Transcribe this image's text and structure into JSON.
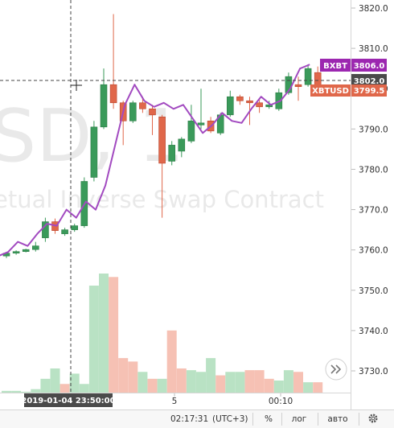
{
  "watermark": {
    "symbol": "SD, 1",
    "description": "etual Inverse Swap Contract"
  },
  "crosshair": {
    "time_label": "2019-01-04 23:50:00",
    "price_label": "3802.0",
    "price": 3802.0
  },
  "price_labels": [
    {
      "name": "BXBT",
      "value": "3806.0",
      "price": 3806.0,
      "color": "#9c27b0"
    },
    {
      "name": "XBTUSD",
      "value": "3799.5",
      "price": 3799.5,
      "color": "#e0674a"
    }
  ],
  "bottom_bar": {
    "clock": "02:17:31",
    "timezone": "(UTC+3)",
    "percent_btn": "%",
    "log_btn": "лог",
    "auto_btn": "авто",
    "gear_icon": "gear-icon"
  },
  "scroll_button_icon": "double-chevron-right-icon",
  "chart_data": {
    "type": "candlestick",
    "price_axis": {
      "ticks": [
        "3820.0",
        "3810.0",
        "3800.0",
        "3790.0",
        "3780.0",
        "3770.0",
        "3760.0",
        "3750.0",
        "3740.0",
        "3730.0"
      ],
      "range": [
        3725.0,
        3821.0
      ]
    },
    "time_axis": {
      "ticks": [
        "5",
        "00:10"
      ]
    },
    "colors": {
      "up": "#3a9a5a",
      "down": "#e0674a",
      "line": "#a24ac0"
    },
    "candles": [
      {
        "o": 3758.5,
        "h": 3759.5,
        "l": 3758.0,
        "c": 3759.2
      },
      {
        "o": 3759.2,
        "h": 3759.9,
        "l": 3758.8,
        "c": 3759.6
      },
      {
        "o": 3759.6,
        "h": 3760.3,
        "l": 3759.4,
        "c": 3760.1
      },
      {
        "o": 3760.1,
        "h": 3762.0,
        "l": 3759.6,
        "c": 3761.0
      },
      {
        "o": 3763.0,
        "h": 3768.0,
        "l": 3762.0,
        "c": 3767.0
      },
      {
        "o": 3767.0,
        "h": 3767.8,
        "l": 3764.0,
        "c": 3764.8
      },
      {
        "o": 3764.0,
        "h": 3765.5,
        "l": 3763.5,
        "c": 3765.0
      },
      {
        "o": 3765.0,
        "h": 3766.5,
        "l": 3764.5,
        "c": 3766.0
      },
      {
        "o": 3766.0,
        "h": 3778.0,
        "l": 3765.5,
        "c": 3777.0
      },
      {
        "o": 3778.0,
        "h": 3792.0,
        "l": 3777.0,
        "c": 3790.5
      },
      {
        "o": 3790.5,
        "h": 3805.0,
        "l": 3790.0,
        "c": 3801.0
      },
      {
        "o": 3801.0,
        "h": 3818.5,
        "l": 3795.0,
        "c": 3796.5
      },
      {
        "o": 3796.5,
        "h": 3797.0,
        "l": 3786.0,
        "c": 3792.0
      },
      {
        "o": 3792.0,
        "h": 3797.0,
        "l": 3791.5,
        "c": 3796.5
      },
      {
        "o": 3796.5,
        "h": 3798.0,
        "l": 3794.0,
        "c": 3795.0
      },
      {
        "o": 3795.0,
        "h": 3796.0,
        "l": 3788.5,
        "c": 3793.5
      },
      {
        "o": 3793.0,
        "h": 3793.5,
        "l": 3768.0,
        "c": 3781.5
      },
      {
        "o": 3782.0,
        "h": 3787.0,
        "l": 3781.0,
        "c": 3786.0
      },
      {
        "o": 3784.5,
        "h": 3788.0,
        "l": 3783.0,
        "c": 3787.5
      },
      {
        "o": 3787.0,
        "h": 3796.0,
        "l": 3786.5,
        "c": 3792.0
      },
      {
        "o": 3791.0,
        "h": 3800.0,
        "l": 3790.0,
        "c": 3791.5
      },
      {
        "o": 3792.0,
        "h": 3793.0,
        "l": 3789.0,
        "c": 3789.5
      },
      {
        "o": 3789.0,
        "h": 3794.0,
        "l": 3788.5,
        "c": 3793.5
      },
      {
        "o": 3793.5,
        "h": 3799.5,
        "l": 3793.0,
        "c": 3798.0
      },
      {
        "o": 3798.0,
        "h": 3798.5,
        "l": 3796.0,
        "c": 3797.0
      },
      {
        "o": 3797.0,
        "h": 3798.0,
        "l": 3791.0,
        "c": 3796.5
      },
      {
        "o": 3796.5,
        "h": 3797.5,
        "l": 3794.0,
        "c": 3795.5
      },
      {
        "o": 3795.5,
        "h": 3797.0,
        "l": 3795.0,
        "c": 3796.0
      },
      {
        "o": 3795.0,
        "h": 3800.0,
        "l": 3794.5,
        "c": 3799.0
      },
      {
        "o": 3799.0,
        "h": 3804.0,
        "l": 3798.5,
        "c": 3803.0
      },
      {
        "o": 3801.0,
        "h": 3803.0,
        "l": 3797.0,
        "c": 3800.5
      },
      {
        "o": 3801.0,
        "h": 3806.0,
        "l": 3800.5,
        "c": 3805.0
      },
      {
        "o": 3804.0,
        "h": 3805.5,
        "l": 3799.0,
        "c": 3799.5
      }
    ],
    "line_series": {
      "name": "BXBT",
      "values": [
        3758.5,
        3759.5,
        3762.0,
        3761.0,
        3764.0,
        3766.5,
        3766.0,
        3770.0,
        3768.0,
        3772.0,
        3770.0,
        3776.0,
        3786.0,
        3796.0,
        3801.0,
        3797.0,
        3795.5,
        3796.5,
        3795.0,
        3796.0,
        3792.5,
        3789.0,
        3791.0,
        3794.0,
        3792.0,
        3791.5,
        3795.0,
        3798.0,
        3796.0,
        3797.0,
        3800.0,
        3805.0,
        3806.0
      ]
    },
    "volume": [
      {
        "v": 1,
        "up": true
      },
      {
        "v": 1,
        "up": true
      },
      {
        "v": 0.5,
        "up": true
      },
      {
        "v": 2,
        "up": true
      },
      {
        "v": 8,
        "up": true
      },
      {
        "v": 14,
        "up": true
      },
      {
        "v": 5,
        "up": false
      },
      {
        "v": 11,
        "up": true
      },
      {
        "v": 5,
        "up": true
      },
      {
        "v": 62,
        "up": true
      },
      {
        "v": 69,
        "up": true
      },
      {
        "v": 67,
        "up": false
      },
      {
        "v": 20,
        "up": false
      },
      {
        "v": 18,
        "up": false
      },
      {
        "v": 12,
        "up": true
      },
      {
        "v": 8,
        "up": false
      },
      {
        "v": 8,
        "up": true
      },
      {
        "v": 36,
        "up": false
      },
      {
        "v": 14,
        "up": false
      },
      {
        "v": 13,
        "up": true
      },
      {
        "v": 12,
        "up": true
      },
      {
        "v": 20,
        "up": true
      },
      {
        "v": 10,
        "up": false
      },
      {
        "v": 12,
        "up": true
      },
      {
        "v": 12,
        "up": true
      },
      {
        "v": 13,
        "up": false
      },
      {
        "v": 13,
        "up": false
      },
      {
        "v": 8,
        "up": false
      },
      {
        "v": 7,
        "up": true
      },
      {
        "v": 13,
        "up": true
      },
      {
        "v": 12,
        "up": false
      },
      {
        "v": 6,
        "up": true
      },
      {
        "v": 6,
        "up": false
      }
    ]
  }
}
